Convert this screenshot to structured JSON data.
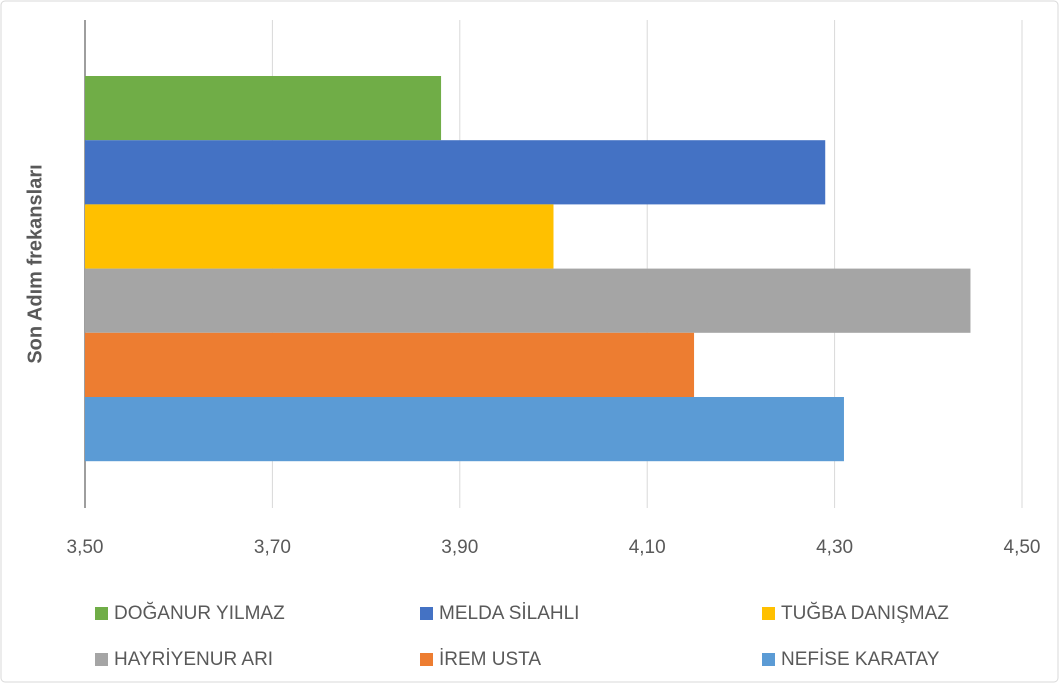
{
  "chart_data": {
    "type": "hbar",
    "ylabel": "Son Adım frekansları",
    "categories": [
      null
    ],
    "series": [
      {
        "name": "DOĞANUR YILMAZ",
        "color": "#70ad47",
        "values": [
          3.88
        ]
      },
      {
        "name": "MELDA SİLAHLI",
        "color": "#4472c4",
        "values": [
          4.29
        ]
      },
      {
        "name": "TUĞBA DANIŞMAZ",
        "color": "#ffc000",
        "values": [
          4.0
        ]
      },
      {
        "name": "HAYRİYENUR ARI",
        "color": "#a5a5a5",
        "values": [
          4.445
        ]
      },
      {
        "name": "İREM USTA",
        "color": "#ed7d31",
        "values": [
          4.15
        ]
      },
      {
        "name": "NEFİSE KARATAY",
        "color": "#5b9bd5",
        "values": [
          4.31
        ]
      }
    ],
    "xlim": [
      3.5,
      4.5
    ],
    "xticks": [
      {
        "value": 3.5,
        "label": "3,50"
      },
      {
        "value": 3.7,
        "label": "3,70"
      },
      {
        "value": 3.9,
        "label": "3,90"
      },
      {
        "value": 4.1,
        "label": "4,10"
      },
      {
        "value": 4.3,
        "label": "4,30"
      },
      {
        "value": 4.5,
        "label": "4,50"
      }
    ],
    "grid": true,
    "legend": "bottom"
  }
}
